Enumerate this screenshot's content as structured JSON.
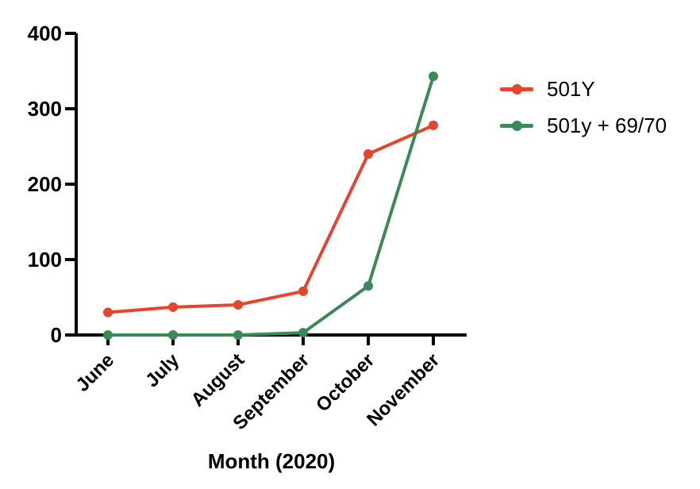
{
  "chart_data": {
    "type": "line",
    "categories": [
      "June",
      "July",
      "August",
      "September",
      "October",
      "November"
    ],
    "series": [
      {
        "name": "501Y",
        "color": "#E8432C",
        "values": [
          30,
          37,
          40,
          58,
          240,
          278
        ]
      },
      {
        "name": "501y + 69/70",
        "color": "#3A8A57",
        "values": [
          0,
          0,
          0,
          3,
          65,
          343
        ]
      }
    ],
    "title": "",
    "xlabel": "Month (2020)",
    "ylabel": "",
    "ylim": [
      0,
      400
    ],
    "yticks": [
      0,
      100,
      200,
      300,
      400
    ],
    "grid": false,
    "legend_position": "right",
    "axis_color": "#000000",
    "background_color": "#ffffff"
  }
}
